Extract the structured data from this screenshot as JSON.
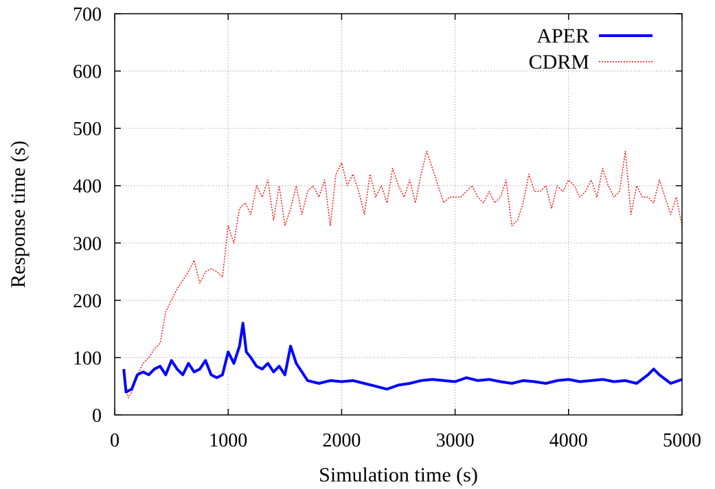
{
  "chart_data": {
    "type": "line",
    "xlabel": "Simulation time (s)",
    "ylabel": "Response time (s)",
    "xlim": [
      0,
      5000
    ],
    "ylim": [
      0,
      700
    ],
    "xticks": [
      0,
      1000,
      2000,
      3000,
      4000,
      5000
    ],
    "yticks": [
      0,
      100,
      200,
      300,
      400,
      500,
      600,
      700
    ],
    "grid": true,
    "legend_position": "top-right",
    "series": [
      {
        "name": "APER",
        "color": "#0000ff",
        "style": "solid-thick",
        "x": [
          80,
          100,
          150,
          200,
          250,
          300,
          350,
          400,
          450,
          500,
          550,
          600,
          650,
          700,
          750,
          800,
          850,
          900,
          950,
          1000,
          1050,
          1100,
          1130,
          1160,
          1200,
          1250,
          1300,
          1350,
          1400,
          1450,
          1500,
          1550,
          1600,
          1650,
          1700,
          1800,
          1900,
          2000,
          2100,
          2200,
          2300,
          2400,
          2500,
          2600,
          2700,
          2800,
          2900,
          3000,
          3100,
          3200,
          3300,
          3400,
          3500,
          3600,
          3700,
          3800,
          3900,
          4000,
          4100,
          4200,
          4300,
          4400,
          4500,
          4600,
          4700,
          4750,
          4800,
          4900,
          5000
        ],
        "y": [
          80,
          40,
          45,
          70,
          75,
          70,
          80,
          85,
          70,
          95,
          80,
          70,
          90,
          75,
          80,
          95,
          70,
          65,
          70,
          110,
          90,
          120,
          160,
          110,
          100,
          85,
          80,
          90,
          75,
          85,
          70,
          120,
          90,
          75,
          60,
          55,
          60,
          58,
          60,
          55,
          50,
          45,
          52,
          55,
          60,
          62,
          60,
          58,
          65,
          60,
          62,
          58,
          55,
          60,
          58,
          55,
          60,
          62,
          58,
          60,
          62,
          58,
          60,
          55,
          70,
          80,
          70,
          55,
          62
        ]
      },
      {
        "name": "CDRM",
        "color": "#ff0000",
        "style": "dotted",
        "x": [
          100,
          120,
          150,
          200,
          250,
          300,
          350,
          400,
          450,
          500,
          550,
          600,
          650,
          700,
          750,
          800,
          850,
          900,
          950,
          1000,
          1050,
          1100,
          1150,
          1200,
          1250,
          1300,
          1350,
          1400,
          1450,
          1500,
          1550,
          1600,
          1650,
          1700,
          1750,
          1800,
          1850,
          1900,
          1950,
          2000,
          2050,
          2100,
          2150,
          2200,
          2250,
          2300,
          2350,
          2400,
          2450,
          2500,
          2550,
          2600,
          2650,
          2700,
          2750,
          2800,
          2850,
          2900,
          2950,
          3000,
          3050,
          3100,
          3150,
          3200,
          3250,
          3300,
          3350,
          3400,
          3450,
          3500,
          3550,
          3600,
          3650,
          3700,
          3750,
          3800,
          3850,
          3900,
          3950,
          4000,
          4050,
          4100,
          4150,
          4200,
          4250,
          4300,
          4350,
          4400,
          4450,
          4500,
          4550,
          4600,
          4650,
          4700,
          4750,
          4800,
          4850,
          4900,
          4950,
          5000
        ],
        "y": [
          50,
          30,
          40,
          70,
          90,
          100,
          115,
          125,
          180,
          200,
          220,
          235,
          250,
          270,
          230,
          250,
          255,
          250,
          240,
          330,
          300,
          360,
          370,
          350,
          400,
          380,
          410,
          340,
          400,
          330,
          360,
          400,
          350,
          390,
          400,
          380,
          410,
          330,
          420,
          440,
          400,
          420,
          390,
          350,
          420,
          380,
          400,
          370,
          430,
          400,
          380,
          410,
          370,
          420,
          460,
          430,
          400,
          370,
          380,
          380,
          380,
          390,
          400,
          380,
          370,
          390,
          370,
          380,
          410,
          330,
          340,
          370,
          420,
          390,
          390,
          400,
          360,
          400,
          390,
          410,
          400,
          380,
          390,
          410,
          380,
          430,
          400,
          380,
          390,
          460,
          350,
          400,
          380,
          380,
          370,
          410,
          380,
          350,
          380,
          330
        ]
      }
    ]
  }
}
